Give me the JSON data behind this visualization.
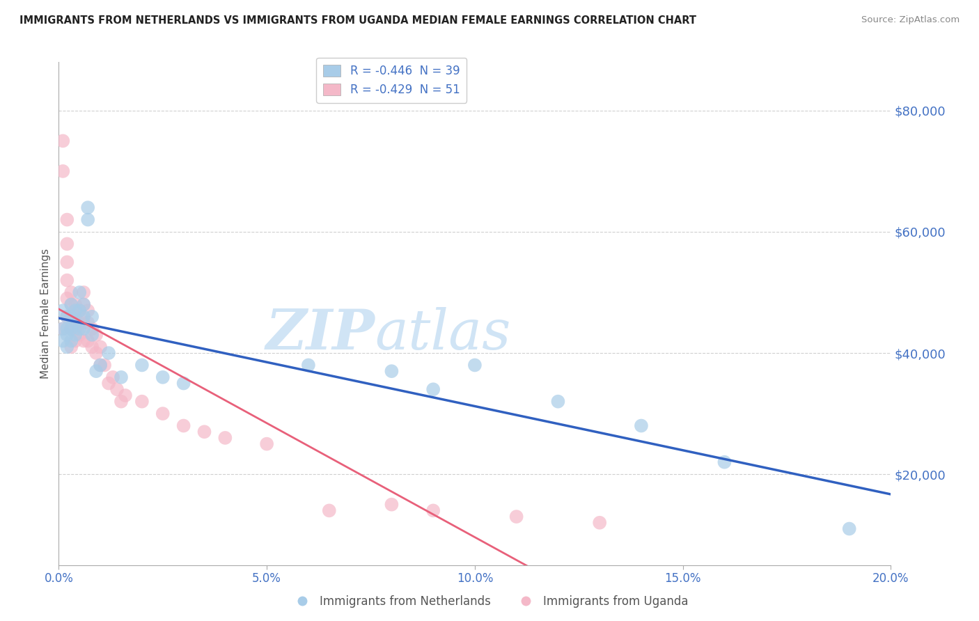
{
  "title": "IMMIGRANTS FROM NETHERLANDS VS IMMIGRANTS FROM UGANDA MEDIAN FEMALE EARNINGS CORRELATION CHART",
  "source": "Source: ZipAtlas.com",
  "ylabel": "Median Female Earnings",
  "x_min": 0.0,
  "x_max": 0.2,
  "y_min": 5000,
  "y_max": 88000,
  "yticks": [
    20000,
    40000,
    60000,
    80000
  ],
  "xticks": [
    0.0,
    0.05,
    0.1,
    0.15,
    0.2
  ],
  "netherlands_color": "#a8cce8",
  "uganda_color": "#f4b8c8",
  "netherlands_label": "Immigrants from Netherlands",
  "uganda_label": "Immigrants from Uganda",
  "netherlands_R": -0.446,
  "netherlands_N": 39,
  "uganda_R": -0.429,
  "uganda_N": 51,
  "background_color": "#ffffff",
  "nl_line_color": "#3060c0",
  "ug_line_color": "#e8607a",
  "ug_line_dashed_color": "#f0b0c0",
  "axis_color": "#4472c4",
  "grid_color": "#d0d0d0",
  "title_color": "#222222",
  "netherlands_x": [
    0.001,
    0.001,
    0.001,
    0.002,
    0.002,
    0.002,
    0.002,
    0.003,
    0.003,
    0.003,
    0.003,
    0.004,
    0.004,
    0.004,
    0.005,
    0.005,
    0.005,
    0.006,
    0.006,
    0.006,
    0.007,
    0.007,
    0.008,
    0.008,
    0.009,
    0.01,
    0.012,
    0.015,
    0.02,
    0.025,
    0.03,
    0.06,
    0.08,
    0.09,
    0.1,
    0.12,
    0.14,
    0.16,
    0.19
  ],
  "netherlands_y": [
    47000,
    44000,
    42000,
    46000,
    44000,
    43000,
    41000,
    48000,
    46000,
    44000,
    42000,
    47000,
    45000,
    43000,
    50000,
    47000,
    44000,
    48000,
    46000,
    44000,
    64000,
    62000,
    46000,
    43000,
    37000,
    38000,
    40000,
    36000,
    38000,
    36000,
    35000,
    38000,
    37000,
    34000,
    38000,
    32000,
    28000,
    22000,
    11000
  ],
  "uganda_x": [
    0.001,
    0.001,
    0.001,
    0.002,
    0.002,
    0.002,
    0.002,
    0.002,
    0.002,
    0.003,
    0.003,
    0.003,
    0.003,
    0.003,
    0.004,
    0.004,
    0.004,
    0.004,
    0.005,
    0.005,
    0.005,
    0.006,
    0.006,
    0.006,
    0.006,
    0.007,
    0.007,
    0.007,
    0.008,
    0.008,
    0.009,
    0.009,
    0.01,
    0.01,
    0.011,
    0.012,
    0.013,
    0.014,
    0.015,
    0.016,
    0.02,
    0.025,
    0.03,
    0.035,
    0.04,
    0.05,
    0.065,
    0.08,
    0.09,
    0.11,
    0.13
  ],
  "uganda_y": [
    75000,
    70000,
    44000,
    62000,
    58000,
    55000,
    52000,
    49000,
    46000,
    50000,
    48000,
    46000,
    44000,
    41000,
    48000,
    46000,
    44000,
    42000,
    47000,
    45000,
    43000,
    50000,
    48000,
    45000,
    42000,
    47000,
    45000,
    42000,
    44000,
    41000,
    43000,
    40000,
    41000,
    38000,
    38000,
    35000,
    36000,
    34000,
    32000,
    33000,
    32000,
    30000,
    28000,
    27000,
    26000,
    25000,
    14000,
    15000,
    14000,
    13000,
    12000
  ]
}
